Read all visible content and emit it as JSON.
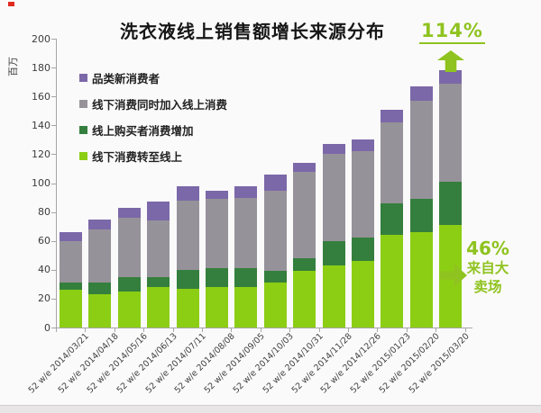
{
  "chart_data": {
    "type": "bar",
    "variant": "stacked",
    "title": "洗衣液线上销售额增长来源分布",
    "y_axis_title": "百万",
    "ylim": [
      0,
      200
    ],
    "y_step": 20,
    "grid": false,
    "legend_position": "upper-left-inside",
    "categories": [
      "52 w/e 2014/03/21",
      "52 w/e 2014/04/18",
      "52 w/e 2014/05/16",
      "52 w/e 2014/06/13",
      "52 w/e 2014/07/11",
      "52 w/e 2014/08/08",
      "52 w/e 2014/09/05",
      "52 w/e 2014/10/03",
      "52 w/e 2014/10/31",
      "52 w/e 2014/11/28",
      "52 w/e 2014/12/26",
      "52 w/e 2015/01/23",
      "52 w/e 2015/02/20",
      "52 w/e 2015/03/20"
    ],
    "stack_order": "bottom-to-top",
    "series": [
      {
        "name": "线下消费转至线上",
        "color": "#8CCE14",
        "values": [
          26,
          23,
          25,
          28,
          27,
          28,
          28,
          31,
          39,
          43,
          46,
          64,
          66,
          71
        ]
      },
      {
        "name": "线上购买者消费增加",
        "color": "#347F3D",
        "values": [
          5,
          8,
          10,
          7,
          13,
          13,
          13,
          8,
          9,
          17,
          16,
          22,
          23,
          30
        ]
      },
      {
        "name": "线下消费同时加入线上消费",
        "color": "#96929A",
        "values": [
          29,
          37,
          41,
          39,
          48,
          48,
          49,
          56,
          60,
          60,
          60,
          56,
          68,
          68
        ]
      },
      {
        "name": "品类新消费者",
        "color": "#7B68A8",
        "values": [
          6,
          7,
          7,
          13,
          10,
          6,
          8,
          11,
          6,
          7,
          8,
          9,
          10,
          9
        ]
      }
    ],
    "totals": [
      66,
      75,
      83,
      87,
      98,
      95,
      98,
      106,
      114,
      127,
      130,
      151,
      167,
      178
    ],
    "legend": [
      {
        "label": "品类新消费者",
        "color": "#7B68A8"
      },
      {
        "label": "线下消费同时加入线上消费",
        "color": "#96929A"
      },
      {
        "label": "线上购买者消费增加",
        "color": "#347F3D"
      },
      {
        "label": "线下消费转至线上",
        "color": "#8CCE14"
      }
    ],
    "annotations": [
      {
        "text": "114%",
        "icon": "up-arrow",
        "position": "top-right",
        "color": "#8FC31F",
        "underline": true
      },
      {
        "text": "46%",
        "subtext": "来自大卖场",
        "icon": "right-arrow",
        "position": "right",
        "color": "#8FC31F"
      }
    ]
  },
  "colors": {
    "axis": "#a8a4a6",
    "tick_text": "#3c3c3c",
    "annotation_green": "#8FC31F",
    "background": "#fbfafa"
  }
}
